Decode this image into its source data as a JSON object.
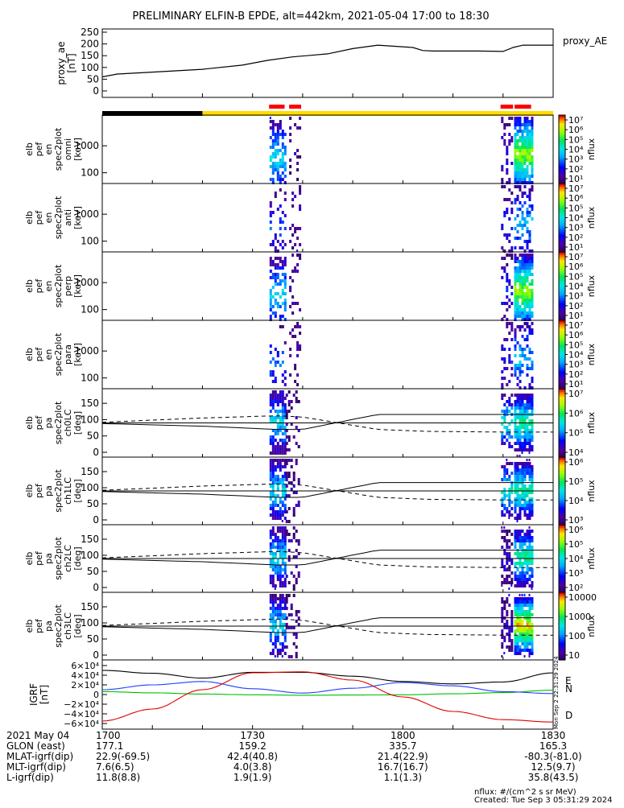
{
  "title": "PRELIMINARY ELFIN-B EPDE, alt=442km, 2021-05-04 17:00 to 18:30",
  "colors": {
    "ae_line": "#000000",
    "grf_x": "#000000",
    "grf_y": "#00c000",
    "grf_z": "#e00000",
    "grf_n": "#2040ff",
    "status_dark": "#000000",
    "status_yellow": "#ffdd00",
    "status_red": "#ff0000"
  },
  "chart_data": [
    {
      "type": "line",
      "panel": "proxy_ae",
      "ylabel": [
        "proxy_ae",
        "[nT]"
      ],
      "legend": "proxy_AE",
      "ylim": [
        0,
        250
      ],
      "yticks": [
        "250",
        "200",
        "150",
        "100",
        "50",
        "0"
      ],
      "ytick_values": [
        250,
        200,
        150,
        100,
        50,
        0
      ],
      "x_minutes": [
        0,
        3,
        10,
        20,
        28,
        33,
        38,
        45,
        50,
        55,
        62,
        64,
        66,
        70,
        75,
        80,
        82,
        84,
        86,
        90
      ],
      "values": [
        60,
        72,
        80,
        92,
        110,
        130,
        145,
        158,
        180,
        195,
        185,
        172,
        170,
        170,
        170,
        168,
        185,
        195,
        195,
        195
      ]
    },
    {
      "type": "heatmap",
      "panel": "spec-omni",
      "ylabel": [
        "elb",
        "pef",
        "en",
        "spec2plot",
        "omni",
        "[keV]"
      ],
      "ytick_labels": [
        "1000",
        "100"
      ],
      "ytick_values": [
        1000,
        100
      ],
      "yscale": "log",
      "colorbar": {
        "label": "nflux",
        "tick_labels": [
          "10⁷",
          "10⁶",
          "10⁵",
          "10⁴",
          "10³",
          "10²",
          "10¹"
        ]
      }
    },
    {
      "type": "heatmap",
      "panel": "spec-anti",
      "ylabel": [
        "elb",
        "pef",
        "en",
        "spec2plot",
        "anti",
        "[keV]"
      ],
      "ytick_labels": [
        "1000",
        "100"
      ],
      "ytick_values": [
        1000,
        100
      ],
      "yscale": "log",
      "colorbar": {
        "label": "nflux",
        "tick_labels": [
          "10⁷",
          "10⁶",
          "10⁵",
          "10⁴",
          "10³",
          "10²",
          "10¹"
        ]
      }
    },
    {
      "type": "heatmap",
      "panel": "spec-perp",
      "ylabel": [
        "elb",
        "pef",
        "en",
        "spec2plot",
        "perp",
        "[keV]"
      ],
      "ytick_labels": [
        "1000",
        "100"
      ],
      "ytick_values": [
        1000,
        100
      ],
      "yscale": "log",
      "colorbar": {
        "label": "nflux",
        "tick_labels": [
          "10⁷",
          "10⁶",
          "10⁵",
          "10⁴",
          "10³",
          "10²",
          "10¹"
        ]
      }
    },
    {
      "type": "heatmap",
      "panel": "spec-para",
      "ylabel": [
        "elb",
        "pef",
        "en",
        "spec2plot",
        "para",
        "[keV]"
      ],
      "ytick_labels": [
        "1000",
        "100"
      ],
      "ytick_values": [
        1000,
        100
      ],
      "yscale": "log",
      "colorbar": {
        "label": "nflux",
        "tick_labels": [
          "10⁷",
          "10⁶",
          "10⁵",
          "10⁴",
          "10³",
          "10²",
          "10¹"
        ]
      }
    },
    {
      "type": "heatmap",
      "panel": "pa-ch0",
      "ylabel": [
        "elb",
        "pef",
        "pa",
        "spec2plot",
        "ch0LC",
        "[deg]"
      ],
      "ylim": [
        0,
        180
      ],
      "ytick_labels": [
        "150",
        "100",
        "50",
        "0"
      ],
      "ytick_values": [
        150,
        100,
        50,
        0
      ],
      "colorbar": {
        "label": "nflux",
        "tick_labels": [
          "10⁷",
          "10⁶",
          "10⁵",
          "10⁴"
        ]
      }
    },
    {
      "type": "heatmap",
      "panel": "pa-ch1",
      "ylabel": [
        "elb",
        "pef",
        "pa",
        "spec2plot",
        "ch1LC",
        "[deg]"
      ],
      "ylim": [
        0,
        180
      ],
      "ytick_labels": [
        "150",
        "100",
        "50",
        "0"
      ],
      "ytick_values": [
        150,
        100,
        50,
        0
      ],
      "colorbar": {
        "label": "nflux",
        "tick_labels": [
          "10⁶",
          "10⁵",
          "10⁴",
          "10³"
        ]
      }
    },
    {
      "type": "heatmap",
      "panel": "pa-ch2",
      "ylabel": [
        "elb",
        "pef",
        "pa",
        "spec2plot",
        "ch2LC",
        "[deg]"
      ],
      "ylim": [
        0,
        180
      ],
      "ytick_labels": [
        "150",
        "100",
        "50",
        "0"
      ],
      "ytick_values": [
        150,
        100,
        50,
        0
      ],
      "colorbar": {
        "label": "nflux",
        "tick_labels": [
          "10⁶",
          "10⁵",
          "10⁴",
          "10³",
          "10²"
        ]
      }
    },
    {
      "type": "heatmap",
      "panel": "pa-ch3",
      "ylabel": [
        "elb",
        "pef",
        "pa",
        "spec2plot",
        "ch3LC",
        "[deg]"
      ],
      "ylim": [
        0,
        180
      ],
      "ytick_labels": [
        "150",
        "100",
        "50",
        "0"
      ],
      "ytick_values": [
        150,
        100,
        50,
        0
      ],
      "colorbar": {
        "label": "nflux",
        "tick_labels": [
          "10000",
          "1000",
          "100",
          "10"
        ]
      }
    },
    {
      "type": "line",
      "panel": "igrf",
      "ylabel": [
        "IGRF",
        "[nT]"
      ],
      "ylim": [
        -65000,
        65000
      ],
      "ytick_labels": [
        "6×10⁴",
        "4×10⁴",
        "2×10⁴",
        "0",
        "−2×10⁴",
        "−4×10⁴",
        "−6×10⁴"
      ],
      "ytick_values": [
        60000,
        40000,
        20000,
        0,
        -20000,
        -40000,
        -60000
      ],
      "legend": [
        "E",
        "N",
        "D"
      ],
      "x_minutes": [
        0,
        10,
        20,
        30,
        40,
        50,
        60,
        70,
        80,
        90
      ],
      "series": [
        {
          "values": [
            50000,
            44000,
            34000,
            46000,
            46000,
            38000,
            27000,
            22000,
            26000,
            45000
          ]
        },
        {
          "values": [
            6000,
            3500,
            1000,
            -500,
            -1500,
            -1000,
            -500,
            1500,
            4000,
            9000
          ]
        },
        {
          "values": [
            10000,
            20000,
            27000,
            12000,
            3000,
            13000,
            25000,
            18000,
            6000,
            2000
          ]
        },
        {
          "values": [
            -55000,
            -30000,
            10000,
            45000,
            47000,
            30000,
            -5000,
            -35000,
            -52000,
            -57000
          ]
        }
      ]
    }
  ],
  "time_axis": {
    "row_labels": [
      "2021 May 04",
      "GLON (east)",
      "MLAT-igrf(dip)",
      "MLT-igrf(dip)",
      "L-igrf(dip)"
    ],
    "ticks": [
      {
        "values": [
          "1700",
          "177.1",
          "22.9(-69.5)",
          "7.6(6.5)",
          "11.8(8.8)"
        ]
      },
      {
        "values": [
          "1730",
          "159.2",
          "42.4(40.8)",
          "4.0(3.8)",
          "1.9(1.9)"
        ]
      },
      {
        "values": [
          "1800",
          "335.7",
          "21.4(22.9)",
          "16.7(16.7)",
          "1.1(1.3)"
        ]
      },
      {
        "values": [
          "1830",
          "165.3",
          "-80.3(-81.0)",
          "12.5(9.7)",
          "35.8(43.5)"
        ]
      }
    ]
  },
  "footer": {
    "units": "nflux: #/(cm^2 s sr MeV)",
    "created": "Created: Tue Sep  3 05:31:29 2024",
    "side_stamp": "Mon Sep  2 22:31:29 2024"
  }
}
